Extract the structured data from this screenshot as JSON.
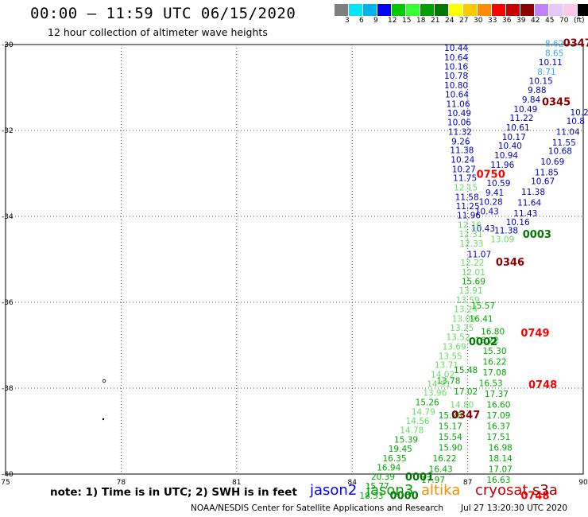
{
  "title": "00:00 – 11:59 UTC 06/15/2020",
  "subtitle": "12 hour collection of altimeter wave heights",
  "legend": {
    "colors": [
      "#7f7f7f",
      "#00e5ff",
      "#00b2ee",
      "#0000ff",
      "#00c800",
      "#33ff33",
      "#00a000",
      "#007800",
      "#ffff00",
      "#ffc800",
      "#ff8c00",
      "#ff0000",
      "#c80000",
      "#8b0000",
      "#c080ff",
      "#e6c8ff",
      "#ffc8e6",
      "#000000"
    ],
    "labels": [
      "3",
      "6",
      "9",
      "12",
      "15",
      "18",
      "21",
      "24",
      "27",
      "30",
      "33",
      "36",
      "39",
      "42",
      "45",
      "70",
      "(ft)"
    ]
  },
  "axes": {
    "lat_labels": [
      "-30",
      "-32",
      "-34",
      "-36",
      "-38",
      "-40"
    ],
    "lon_labels": [
      "75",
      "78",
      "81",
      "84",
      "87",
      "90"
    ]
  },
  "observations": [
    {
      "text": "8.62",
      "color": "#33aaff",
      "lon": 89.25,
      "lat": -30.05
    },
    {
      "text": "8.65",
      "color": "#33aaff",
      "lon": 89.25,
      "lat": -30.27
    },
    {
      "text": "10.11",
      "color": "#0000cc",
      "lon": 89.15,
      "lat": -30.48
    },
    {
      "text": "8.71",
      "color": "#33aaff",
      "lon": 89.05,
      "lat": -30.7
    },
    {
      "text": "10.15",
      "color": "#0000cc",
      "lon": 88.9,
      "lat": -30.92
    },
    {
      "text": "9.88",
      "color": "#0000cc",
      "lon": 88.8,
      "lat": -31.13
    },
    {
      "text": "9.84",
      "color": "#0000cc",
      "lon": 88.65,
      "lat": -31.35
    },
    {
      "text": "10.49",
      "color": "#0000cc",
      "lon": 88.5,
      "lat": -31.57
    },
    {
      "text": "11.22",
      "color": "#0000cc",
      "lon": 88.4,
      "lat": -31.78
    },
    {
      "text": "10.61",
      "color": "#0000cc",
      "lon": 88.3,
      "lat": -32.0
    },
    {
      "text": "10.17",
      "color": "#0000cc",
      "lon": 88.2,
      "lat": -32.22
    },
    {
      "text": "10.40",
      "color": "#0000cc",
      "lon": 88.1,
      "lat": -32.43
    },
    {
      "text": "10.94",
      "color": "#0000cc",
      "lon": 88.0,
      "lat": -32.65
    },
    {
      "text": "11.96",
      "color": "#0000cc",
      "lon": 87.9,
      "lat": -32.87
    },
    {
      "text": "10.59",
      "color": "#0000cc",
      "lon": 87.8,
      "lat": -33.3
    },
    {
      "text": "9.41",
      "color": "#0000cc",
      "lon": 87.7,
      "lat": -33.52
    },
    {
      "text": "10.28",
      "color": "#0000cc",
      "lon": 87.6,
      "lat": -33.73
    },
    {
      "text": "10.43",
      "color": "#0000cc",
      "lon": 87.5,
      "lat": -33.95
    },
    {
      "text": "10.43",
      "color": "#0000cc",
      "lon": 87.4,
      "lat": -34.35
    },
    {
      "text": "11.07",
      "color": "#0000cc",
      "lon": 87.3,
      "lat": -34.95
    },
    {
      "text": "10.44",
      "color": "#0000cc",
      "lon": 86.7,
      "lat": -30.15
    },
    {
      "text": "10.64",
      "color": "#0000cc",
      "lon": 86.7,
      "lat": -30.37
    },
    {
      "text": "10.16",
      "color": "#0000cc",
      "lon": 86.7,
      "lat": -30.58
    },
    {
      "text": "10.78",
      "color": "#0000cc",
      "lon": 86.7,
      "lat": -30.8
    },
    {
      "text": "10.80",
      "color": "#0000cc",
      "lon": 86.7,
      "lat": -31.02
    },
    {
      "text": "10.64",
      "color": "#0000cc",
      "lon": 86.72,
      "lat": -31.23
    },
    {
      "text": "11.06",
      "color": "#0000cc",
      "lon": 86.75,
      "lat": -31.45
    },
    {
      "text": "10.49",
      "color": "#0000cc",
      "lon": 86.78,
      "lat": -31.67
    },
    {
      "text": "10.06",
      "color": "#0000cc",
      "lon": 86.78,
      "lat": -31.88
    },
    {
      "text": "11.32",
      "color": "#0000cc",
      "lon": 86.8,
      "lat": -32.1
    },
    {
      "text": "9.26",
      "color": "#0000cc",
      "lon": 86.82,
      "lat": -32.32
    },
    {
      "text": "11.38",
      "color": "#0000cc",
      "lon": 86.85,
      "lat": -32.53
    },
    {
      "text": "10.24",
      "color": "#0000cc",
      "lon": 86.87,
      "lat": -32.75
    },
    {
      "text": "10.27",
      "color": "#0000cc",
      "lon": 86.9,
      "lat": -32.97
    },
    {
      "text": "11.75",
      "color": "#0000cc",
      "lon": 86.93,
      "lat": -33.18
    },
    {
      "text": "12.15",
      "color": "#66dd66",
      "lon": 86.95,
      "lat": -33.4
    },
    {
      "text": "11.58",
      "color": "#0000cc",
      "lon": 86.98,
      "lat": -33.62
    },
    {
      "text": "11.25",
      "color": "#0000cc",
      "lon": 87.0,
      "lat": -33.83
    },
    {
      "text": "11.96",
      "color": "#0000cc",
      "lon": 87.03,
      "lat": -34.05
    },
    {
      "text": "12.16",
      "color": "#66dd66",
      "lon": 87.05,
      "lat": -34.27
    },
    {
      "text": "12.31",
      "color": "#66dd66",
      "lon": 87.08,
      "lat": -34.48
    },
    {
      "text": "12.33",
      "color": "#66dd66",
      "lon": 87.1,
      "lat": -34.7
    },
    {
      "text": "12.22",
      "color": "#66dd66",
      "lon": 87.12,
      "lat": -35.15
    },
    {
      "text": "12.01",
      "color": "#66dd66",
      "lon": 87.15,
      "lat": -35.37
    },
    {
      "text": "15.69",
      "color": "#00aa00",
      "lon": 87.15,
      "lat": -35.58
    },
    {
      "text": "13.91",
      "color": "#66dd66",
      "lon": 87.08,
      "lat": -35.8
    },
    {
      "text": "13.59",
      "color": "#66dd66",
      "lon": 87.0,
      "lat": -36.02
    },
    {
      "text": "13.24",
      "color": "#66dd66",
      "lon": 86.95,
      "lat": -36.23
    },
    {
      "text": "13.09",
      "color": "#66dd66",
      "lon": 86.9,
      "lat": -36.45
    },
    {
      "text": "13.25",
      "color": "#66dd66",
      "lon": 86.85,
      "lat": -36.67
    },
    {
      "text": "13.52",
      "color": "#66dd66",
      "lon": 86.75,
      "lat": -36.88
    },
    {
      "text": "13.69",
      "color": "#66dd66",
      "lon": 86.65,
      "lat": -37.1
    },
    {
      "text": "13.55",
      "color": "#66dd66",
      "lon": 86.55,
      "lat": -37.32
    },
    {
      "text": "13.71",
      "color": "#66dd66",
      "lon": 86.45,
      "lat": -37.53
    },
    {
      "text": "14.02",
      "color": "#66dd66",
      "lon": 86.35,
      "lat": -37.75
    },
    {
      "text": "14.91",
      "color": "#66dd66",
      "lon": 86.25,
      "lat": -37.97
    },
    {
      "text": "13.96",
      "color": "#66dd66",
      "lon": 86.15,
      "lat": -38.18
    },
    {
      "text": "15.26",
      "color": "#00aa00",
      "lon": 85.95,
      "lat": -38.4
    },
    {
      "text": "14.79",
      "color": "#66dd66",
      "lon": 85.85,
      "lat": -38.62
    },
    {
      "text": "14.56",
      "color": "#66dd66",
      "lon": 85.7,
      "lat": -38.83
    },
    {
      "text": "14.78",
      "color": "#66dd66",
      "lon": 85.55,
      "lat": -39.05
    },
    {
      "text": "15.39",
      "color": "#00aa00",
      "lon": 85.4,
      "lat": -39.27
    },
    {
      "text": "19.45",
      "color": "#00aa00",
      "lon": 85.25,
      "lat": -39.48
    },
    {
      "text": "16.35",
      "color": "#00aa00",
      "lon": 85.1,
      "lat": -39.7
    },
    {
      "text": "16.94",
      "color": "#00aa00",
      "lon": 84.95,
      "lat": -39.92
    },
    {
      "text": "20.39",
      "color": "#00aa00",
      "lon": 84.8,
      "lat": -40.13
    },
    {
      "text": "15.77",
      "color": "#00aa00",
      "lon": 84.65,
      "lat": -40.35
    },
    {
      "text": "18.53",
      "color": "#00aa00",
      "lon": 84.5,
      "lat": -40.57
    },
    {
      "text": "15.57",
      "color": "#00aa00",
      "lon": 87.4,
      "lat": -36.15
    },
    {
      "text": "16.41",
      "color": "#00aa00",
      "lon": 87.35,
      "lat": -36.45
    },
    {
      "text": "16.80",
      "color": "#00aa00",
      "lon": 87.65,
      "lat": -36.75
    },
    {
      "text": "16.22",
      "color": "#00aa00",
      "lon": 87.5,
      "lat": -36.95
    },
    {
      "text": "15.30",
      "color": "#00aa00",
      "lon": 87.7,
      "lat": -37.2
    },
    {
      "text": "16.22",
      "color": "#00aa00",
      "lon": 87.7,
      "lat": -37.45
    },
    {
      "text": "17.08",
      "color": "#00aa00",
      "lon": 87.7,
      "lat": -37.7
    },
    {
      "text": "16.53",
      "color": "#00aa00",
      "lon": 87.6,
      "lat": -37.95
    },
    {
      "text": "17.37",
      "color": "#00aa00",
      "lon": 87.75,
      "lat": -38.2
    },
    {
      "text": "16.60",
      "color": "#00aa00",
      "lon": 87.8,
      "lat": -38.45
    },
    {
      "text": "17.09",
      "color": "#00aa00",
      "lon": 87.8,
      "lat": -38.7
    },
    {
      "text": "16.37",
      "color": "#00aa00",
      "lon": 87.8,
      "lat": -38.95
    },
    {
      "text": "17.51",
      "color": "#00aa00",
      "lon": 87.8,
      "lat": -39.2
    },
    {
      "text": "16.98",
      "color": "#00aa00",
      "lon": 87.85,
      "lat": -39.45
    },
    {
      "text": "18.14",
      "color": "#00aa00",
      "lon": 87.85,
      "lat": -39.7
    },
    {
      "text": "17.07",
      "color": "#00aa00",
      "lon": 87.85,
      "lat": -39.95
    },
    {
      "text": "16.63",
      "color": "#00aa00",
      "lon": 87.8,
      "lat": -40.2
    },
    {
      "text": "15.48",
      "color": "#00aa00",
      "lon": 86.95,
      "lat": -37.65
    },
    {
      "text": "13.78",
      "color": "#00aa00",
      "lon": 86.5,
      "lat": -37.9
    },
    {
      "text": "17.02",
      "color": "#00aa00",
      "lon": 86.95,
      "lat": -38.15
    },
    {
      "text": "14.80",
      "color": "#66dd66",
      "lon": 86.85,
      "lat": -38.45
    },
    {
      "text": "15.28",
      "color": "#00aa00",
      "lon": 86.55,
      "lat": -38.7
    },
    {
      "text": "15.17",
      "color": "#00aa00",
      "lon": 86.55,
      "lat": -38.95
    },
    {
      "text": "15.54",
      "color": "#00aa00",
      "lon": 86.55,
      "lat": -39.2
    },
    {
      "text": "15.90",
      "color": "#00aa00",
      "lon": 86.55,
      "lat": -39.45
    },
    {
      "text": "16.22",
      "color": "#00aa00",
      "lon": 86.4,
      "lat": -39.7
    },
    {
      "text": "16.43",
      "color": "#00aa00",
      "lon": 86.3,
      "lat": -39.95
    },
    {
      "text": "17.97",
      "color": "#00aa00",
      "lon": 86.1,
      "lat": -40.2
    },
    {
      "text": "10.8",
      "color": "#0000cc",
      "lon": 89.8,
      "lat": -31.85
    },
    {
      "text": "11.04",
      "color": "#0000cc",
      "lon": 89.6,
      "lat": -32.1
    },
    {
      "text": "11.55",
      "color": "#0000cc",
      "lon": 89.5,
      "lat": -32.35
    },
    {
      "text": "10.68",
      "color": "#0000cc",
      "lon": 89.4,
      "lat": -32.55
    },
    {
      "text": "10.69",
      "color": "#0000cc",
      "lon": 89.2,
      "lat": -32.8
    },
    {
      "text": "11.85",
      "color": "#0000cc",
      "lon": 89.05,
      "lat": -33.05
    },
    {
      "text": "10.67",
      "color": "#0000cc",
      "lon": 88.95,
      "lat": -33.25
    },
    {
      "text": "11.38",
      "color": "#0000cc",
      "lon": 88.7,
      "lat": -33.5
    },
    {
      "text": "11.64",
      "color": "#0000cc",
      "lon": 88.6,
      "lat": -33.75
    },
    {
      "text": "11.43",
      "color": "#0000cc",
      "lon": 88.5,
      "lat": -34.0
    },
    {
      "text": "10.16",
      "color": "#0000cc",
      "lon": 88.3,
      "lat": -34.2
    },
    {
      "text": "11.38",
      "color": "#0000cc",
      "lon": 88.0,
      "lat": -34.4
    },
    {
      "text": "13.09",
      "color": "#66dd66",
      "lon": 87.9,
      "lat": -34.6
    },
    {
      "text": "10.2",
      "color": "#0000cc",
      "lon": 89.9,
      "lat": -31.65
    }
  ],
  "time_markers": [
    {
      "text": "0347",
      "color": "#8b0000",
      "lon": 89.85,
      "lat": -30.05
    },
    {
      "text": "0345",
      "color": "#8b0000",
      "lon": 89.3,
      "lat": -31.42
    },
    {
      "text": "0750",
      "color": "#ff0000",
      "lon": 87.6,
      "lat": -33.1
    },
    {
      "text": "0003",
      "color": "#007800",
      "lon": 88.8,
      "lat": -34.5
    },
    {
      "text": "0346",
      "color": "#8b0000",
      "lon": 88.1,
      "lat": -35.15
    },
    {
      "text": "0749",
      "color": "#ff0000",
      "lon": 88.75,
      "lat": -36.8
    },
    {
      "text": "0002",
      "color": "#007800",
      "lon": 87.4,
      "lat": -37.0
    },
    {
      "text": "0748",
      "color": "#ff0000",
      "lon": 88.95,
      "lat": -38.0
    },
    {
      "text": "0347",
      "color": "#8b0000",
      "lon": 86.95,
      "lat": -38.7
    },
    {
      "text": "0001",
      "color": "#007800",
      "lon": 85.75,
      "lat": -40.15
    },
    {
      "text": "0000",
      "color": "#007800",
      "lon": 85.35,
      "lat": -40.58
    },
    {
      "text": "0748",
      "color": "#ff0000",
      "lon": 88.75,
      "lat": -40.58
    }
  ],
  "note": "note: 1) Time is in UTC; 2) SWH is in feet",
  "satellites": [
    {
      "name": "jason2",
      "color": "#0000ff"
    },
    {
      "name": "jason3",
      "color": "#00a000"
    },
    {
      "name": "altika",
      "color": "#ff8c00"
    },
    {
      "name": "cryosat",
      "color": "#c80000"
    },
    {
      "name": "s3a",
      "color": "#8b0000"
    }
  ],
  "footer": {
    "credit": "NOAA/NESDIS Center for Satellite Applications and Research",
    "timestamp": "Jul 27 13:20:30 UTC 2020"
  }
}
